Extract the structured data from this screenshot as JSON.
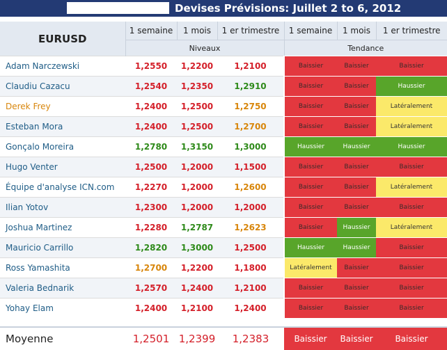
{
  "title": "Devises Prévisions: Juillet 2 to 6, 2012",
  "pair": "EURUSD",
  "col_labels": [
    "1 semaine",
    "1 mois",
    "1 er trimestre"
  ],
  "group_labels": {
    "levels": "Niveaux",
    "trend": "Tendance"
  },
  "colors": {
    "header_bg": "#233a74",
    "red": "#e3383f",
    "green": "#58a52a",
    "yellow": "#fbe96a",
    "text_red": "#d4202a",
    "text_green": "#2e8a1a",
    "text_orange": "#d8860b",
    "name_blue": "#1e5c86",
    "name_orange": "#d8860b"
  },
  "rows": [
    {
      "name": "Adam Narczewski",
      "name_color": "blue",
      "levels": [
        {
          "v": "1,2550",
          "c": "red"
        },
        {
          "v": "1,2200",
          "c": "red"
        },
        {
          "v": "1,2100",
          "c": "red"
        }
      ],
      "trends": [
        "Baissier",
        "Baissier",
        "Baissier"
      ]
    },
    {
      "name": "Claudiu Cazacu",
      "name_color": "blue",
      "levels": [
        {
          "v": "1,2540",
          "c": "red"
        },
        {
          "v": "1,2350",
          "c": "red"
        },
        {
          "v": "1,2910",
          "c": "green"
        }
      ],
      "trends": [
        "Baissier",
        "Baissier",
        "Haussier"
      ]
    },
    {
      "name": "Derek Frey",
      "name_color": "orange",
      "levels": [
        {
          "v": "1,2400",
          "c": "red"
        },
        {
          "v": "1,2500",
          "c": "red"
        },
        {
          "v": "1,2750",
          "c": "orange"
        }
      ],
      "trends": [
        "Baissier",
        "Baissier",
        "Latéralement"
      ]
    },
    {
      "name": "Esteban Mora",
      "name_color": "blue",
      "levels": [
        {
          "v": "1,2400",
          "c": "red"
        },
        {
          "v": "1,2500",
          "c": "red"
        },
        {
          "v": "1,2700",
          "c": "orange"
        }
      ],
      "trends": [
        "Baissier",
        "Baissier",
        "Latéralement"
      ]
    },
    {
      "name": "Gonçalo Moreira",
      "name_color": "blue",
      "levels": [
        {
          "v": "1,2780",
          "c": "green"
        },
        {
          "v": "1,3150",
          "c": "green"
        },
        {
          "v": "1,3000",
          "c": "green"
        }
      ],
      "trends": [
        "Haussier",
        "Haussier",
        "Haussier"
      ]
    },
    {
      "name": "Hugo Venter",
      "name_color": "blue",
      "levels": [
        {
          "v": "1,2500",
          "c": "red"
        },
        {
          "v": "1,2000",
          "c": "red"
        },
        {
          "v": "1,1500",
          "c": "red"
        }
      ],
      "trends": [
        "Baissier",
        "Baissier",
        "Baissier"
      ]
    },
    {
      "name": "Équipe d'analyse ICN.com",
      "name_color": "blue",
      "levels": [
        {
          "v": "1,2270",
          "c": "red"
        },
        {
          "v": "1,2000",
          "c": "red"
        },
        {
          "v": "1,2600",
          "c": "orange"
        }
      ],
      "trends": [
        "Baissier",
        "Baissier",
        "Latéralement"
      ]
    },
    {
      "name": "Ilian Yotov",
      "name_color": "blue",
      "levels": [
        {
          "v": "1,2300",
          "c": "red"
        },
        {
          "v": "1,2000",
          "c": "red"
        },
        {
          "v": "1,2000",
          "c": "red"
        }
      ],
      "trends": [
        "Baissier",
        "Baissier",
        "Baissier"
      ]
    },
    {
      "name": "Joshua Martinez",
      "name_color": "blue",
      "levels": [
        {
          "v": "1,2280",
          "c": "red"
        },
        {
          "v": "1,2787",
          "c": "green"
        },
        {
          "v": "1,2623",
          "c": "orange"
        }
      ],
      "trends": [
        "Baissier",
        "Haussier",
        "Latéralement"
      ]
    },
    {
      "name": "Mauricio Carrillo",
      "name_color": "blue",
      "levels": [
        {
          "v": "1,2820",
          "c": "green"
        },
        {
          "v": "1,3000",
          "c": "green"
        },
        {
          "v": "1,2500",
          "c": "red"
        }
      ],
      "trends": [
        "Haussier",
        "Haussier",
        "Baissier"
      ]
    },
    {
      "name": "Ross Yamashita",
      "name_color": "blue",
      "levels": [
        {
          "v": "1,2700",
          "c": "orange"
        },
        {
          "v": "1,2200",
          "c": "red"
        },
        {
          "v": "1,1800",
          "c": "red"
        }
      ],
      "trends": [
        "Latéralement",
        "Baissier",
        "Baissier"
      ]
    },
    {
      "name": "Valeria Bednarik",
      "name_color": "blue",
      "levels": [
        {
          "v": "1,2570",
          "c": "red"
        },
        {
          "v": "1,2400",
          "c": "red"
        },
        {
          "v": "1,2100",
          "c": "red"
        }
      ],
      "trends": [
        "Baissier",
        "Baissier",
        "Baissier"
      ]
    },
    {
      "name": "Yohay Elam",
      "name_color": "blue",
      "levels": [
        {
          "v": "1,2400",
          "c": "red"
        },
        {
          "v": "1,2100",
          "c": "red"
        },
        {
          "v": "1,2400",
          "c": "red"
        }
      ],
      "trends": [
        "Baissier",
        "Baissier",
        "Baissier"
      ]
    }
  ],
  "average": {
    "label": "Moyenne",
    "levels": [
      "1,2501",
      "1,2399",
      "1,2383"
    ],
    "trends": [
      "Baissier",
      "Baissier",
      "Baissier"
    ]
  }
}
